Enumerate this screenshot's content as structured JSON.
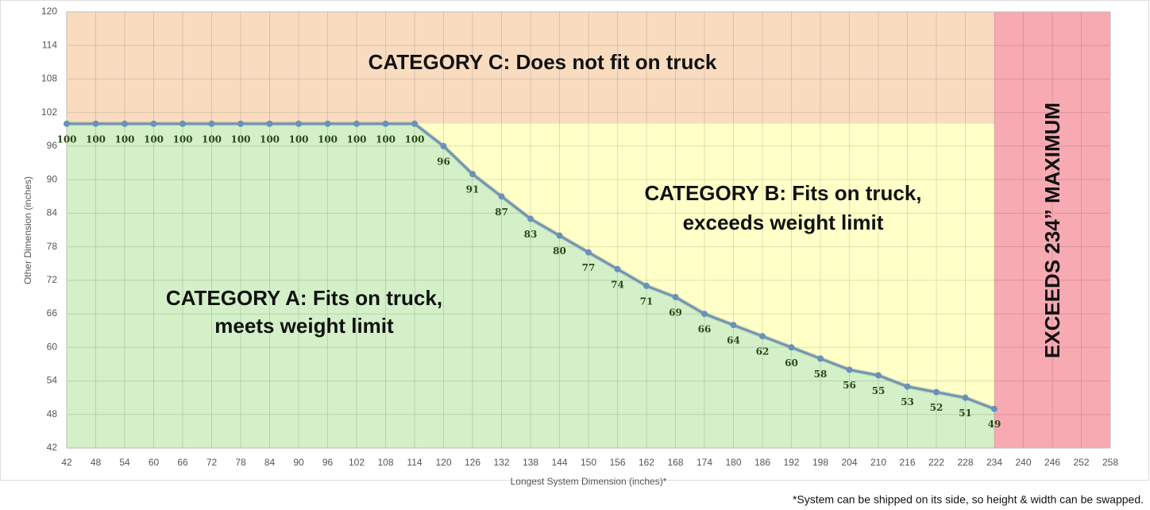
{
  "chart_data": {
    "type": "line",
    "x_label": "Longest System Dimension (inches)*",
    "y_label": "Other Dimension (inches)",
    "x": [
      42,
      48,
      54,
      60,
      66,
      72,
      78,
      84,
      90,
      96,
      102,
      108,
      114,
      120,
      126,
      132,
      138,
      144,
      150,
      156,
      162,
      168,
      174,
      180,
      186,
      192,
      198,
      204,
      210,
      216,
      222,
      228,
      234
    ],
    "series": [
      {
        "color": "#6a92b8",
        "values": [
          100,
          100,
          100,
          100,
          100,
          100,
          100,
          100,
          100,
          100,
          100,
          100,
          100,
          96,
          91,
          87,
          83,
          80,
          77,
          74,
          71,
          69,
          66,
          64,
          62,
          60,
          58,
          56,
          55,
          53,
          52,
          51,
          49
        ]
      }
    ],
    "xlim": [
      42,
      258
    ],
    "xticks": [
      42,
      48,
      54,
      60,
      66,
      72,
      78,
      84,
      90,
      96,
      102,
      108,
      114,
      120,
      126,
      132,
      138,
      144,
      150,
      156,
      162,
      168,
      174,
      180,
      186,
      192,
      198,
      204,
      210,
      216,
      222,
      228,
      234,
      240,
      246,
      252,
      258
    ],
    "ylim": [
      42,
      120
    ],
    "yticks": [
      42,
      48,
      54,
      60,
      66,
      72,
      78,
      84,
      90,
      96,
      102,
      108,
      114,
      120
    ],
    "grid": true,
    "annotations": [
      {
        "lines": [
          "CATEGORY C: Does not fit on truck"
        ],
        "color": "#f9dcc0"
      },
      {
        "lines": [
          "CATEGORY B: Fits on truck,",
          "exceeds weight limit"
        ],
        "color": "#ffffc8"
      },
      {
        "lines": [
          "CATEGORY A: Fits on truck,",
          "meets weight limit"
        ],
        "color": "#d3f0c8"
      },
      {
        "lines": [
          "EXCEEDS 234” MAXIMUM"
        ],
        "color": "#f7aab2"
      }
    ],
    "footnote": "*System can be shipped on its side, so height & width can be swapped."
  }
}
